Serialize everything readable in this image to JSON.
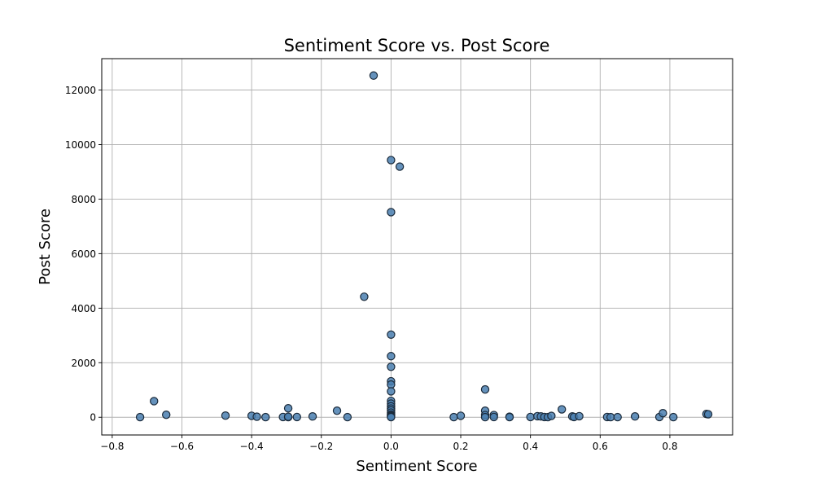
{
  "chart_data": {
    "type": "scatter",
    "title": "Sentiment Score vs. Post Score",
    "xlabel": "Sentiment Score",
    "ylabel": "Post Score",
    "xlim": [
      -0.83,
      0.98
    ],
    "ylim": [
      -650,
      13150
    ],
    "xticks": [
      -0.8,
      -0.6,
      -0.4,
      -0.2,
      0.0,
      0.2,
      0.4,
      0.6,
      0.8
    ],
    "xtick_labels": [
      "−0.8",
      "−0.6",
      "−0.4",
      "−0.2",
      "0.0",
      "0.2",
      "0.4",
      "0.6",
      "0.8"
    ],
    "yticks": [
      0,
      2000,
      4000,
      6000,
      8000,
      10000,
      12000
    ],
    "ytick_labels": [
      "0",
      "2000",
      "4000",
      "6000",
      "8000",
      "10000",
      "12000"
    ],
    "grid": true,
    "marker_color": "#1f77b4",
    "points": [
      {
        "x": -0.72,
        "y": 5
      },
      {
        "x": -0.68,
        "y": 590
      },
      {
        "x": -0.645,
        "y": 90
      },
      {
        "x": -0.475,
        "y": 60
      },
      {
        "x": -0.4,
        "y": 55
      },
      {
        "x": -0.385,
        "y": 20
      },
      {
        "x": -0.36,
        "y": 5
      },
      {
        "x": -0.31,
        "y": 10
      },
      {
        "x": -0.295,
        "y": 5
      },
      {
        "x": -0.295,
        "y": 330
      },
      {
        "x": -0.295,
        "y": 20
      },
      {
        "x": -0.27,
        "y": 10
      },
      {
        "x": -0.225,
        "y": 30
      },
      {
        "x": -0.155,
        "y": 240
      },
      {
        "x": -0.125,
        "y": 5
      },
      {
        "x": -0.077,
        "y": 4420
      },
      {
        "x": -0.05,
        "y": 12530
      },
      {
        "x": 0.0,
        "y": 9430
      },
      {
        "x": 0.0,
        "y": 7520
      },
      {
        "x": 0.0,
        "y": 3030
      },
      {
        "x": 0.0,
        "y": 2240
      },
      {
        "x": 0.0,
        "y": 1850
      },
      {
        "x": 0.0,
        "y": 1320
      },
      {
        "x": 0.0,
        "y": 1200
      },
      {
        "x": 0.0,
        "y": 950
      },
      {
        "x": 0.0,
        "y": 600
      },
      {
        "x": 0.0,
        "y": 500
      },
      {
        "x": 0.0,
        "y": 400
      },
      {
        "x": 0.0,
        "y": 320
      },
      {
        "x": 0.0,
        "y": 250
      },
      {
        "x": 0.0,
        "y": 170
      },
      {
        "x": 0.0,
        "y": 100
      },
      {
        "x": 0.0,
        "y": 60
      },
      {
        "x": 0.0,
        "y": 30
      },
      {
        "x": 0.0,
        "y": 5
      },
      {
        "x": 0.025,
        "y": 9190
      },
      {
        "x": 0.18,
        "y": 5
      },
      {
        "x": 0.2,
        "y": 55
      },
      {
        "x": 0.27,
        "y": 1020
      },
      {
        "x": 0.27,
        "y": 240
      },
      {
        "x": 0.27,
        "y": 80
      },
      {
        "x": 0.27,
        "y": 5
      },
      {
        "x": 0.295,
        "y": 80
      },
      {
        "x": 0.295,
        "y": 10
      },
      {
        "x": 0.34,
        "y": 20
      },
      {
        "x": 0.34,
        "y": 5
      },
      {
        "x": 0.4,
        "y": 10
      },
      {
        "x": 0.42,
        "y": 40
      },
      {
        "x": 0.43,
        "y": 30
      },
      {
        "x": 0.44,
        "y": 10
      },
      {
        "x": 0.45,
        "y": 5
      },
      {
        "x": 0.46,
        "y": 50
      },
      {
        "x": 0.49,
        "y": 290
      },
      {
        "x": 0.52,
        "y": 30
      },
      {
        "x": 0.525,
        "y": 10
      },
      {
        "x": 0.54,
        "y": 40
      },
      {
        "x": 0.62,
        "y": 10
      },
      {
        "x": 0.63,
        "y": 5
      },
      {
        "x": 0.65,
        "y": 5
      },
      {
        "x": 0.7,
        "y": 30
      },
      {
        "x": 0.77,
        "y": 10
      },
      {
        "x": 0.78,
        "y": 150
      },
      {
        "x": 0.81,
        "y": 5
      },
      {
        "x": 0.905,
        "y": 120
      },
      {
        "x": 0.91,
        "y": 110
      }
    ]
  }
}
